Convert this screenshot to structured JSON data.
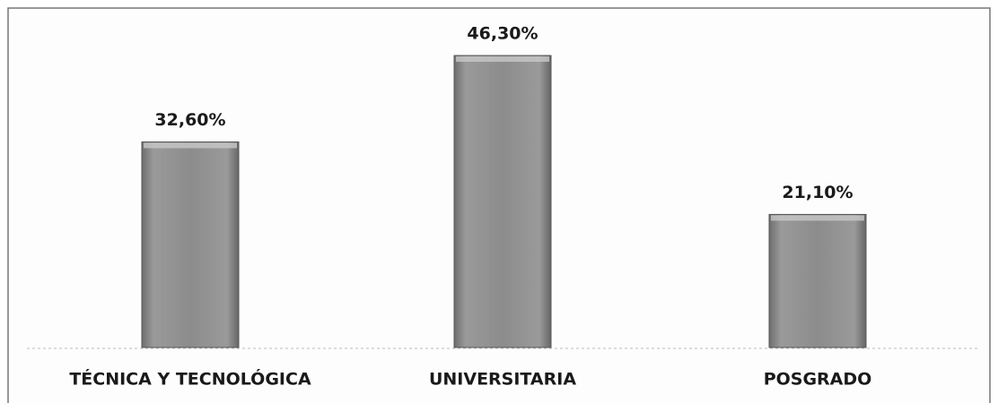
{
  "chart_data": {
    "type": "bar",
    "categories": [
      "TÉCNICA Y TECNOLÓGICA",
      "UNIVERSITARIA",
      "POSGRADO"
    ],
    "values": [
      32.6,
      46.3,
      21.1
    ],
    "value_labels": [
      "32,60%",
      "46,30%",
      "21,10%"
    ],
    "color": "#8a8a8a"
  }
}
